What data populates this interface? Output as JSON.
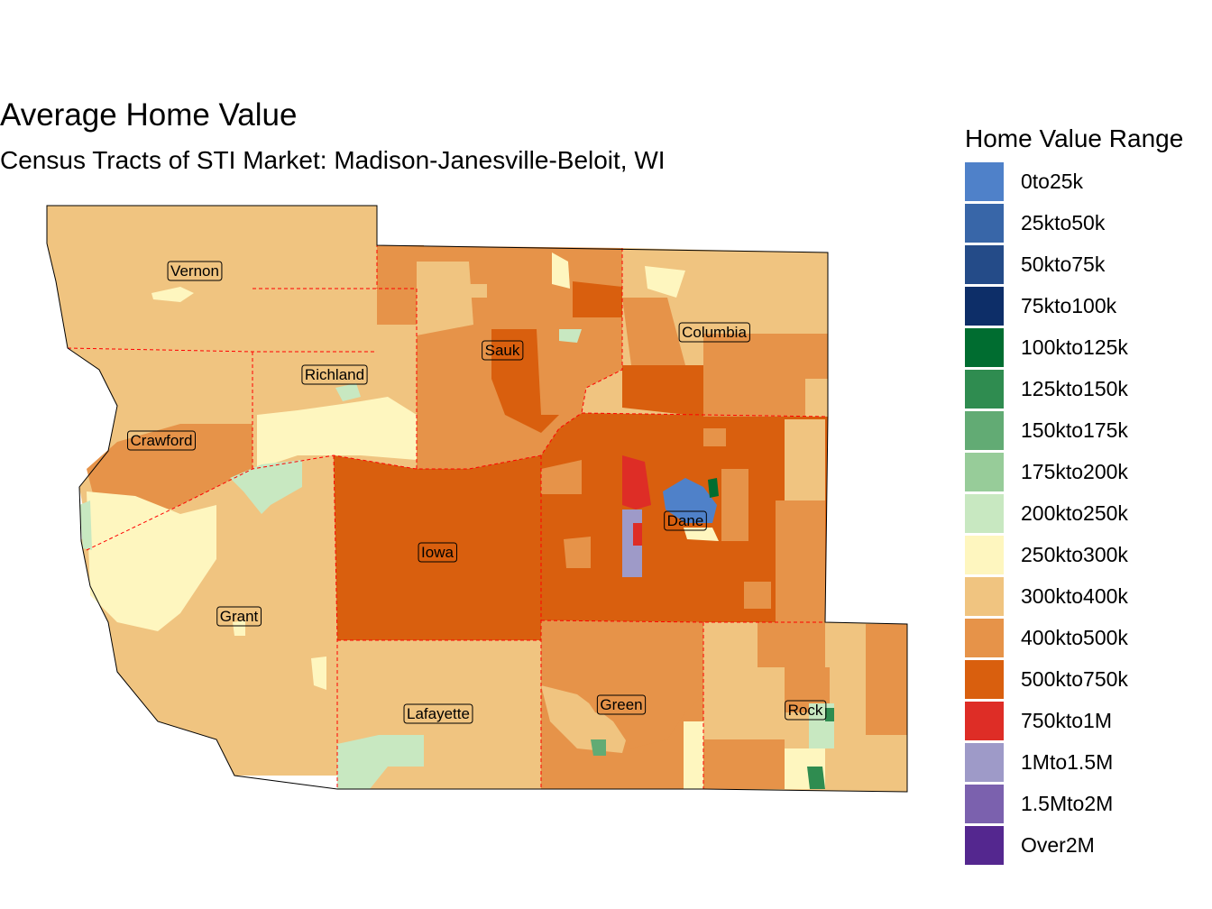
{
  "title": "Average Home Value",
  "subtitle": "Census Tracts of STI Market: Madison-Janesville-Beloit, WI",
  "legend": {
    "title": "Home Value Range",
    "items": [
      {
        "label": "0to25k",
        "color": "#4f81c9"
      },
      {
        "label": "25kto50k",
        "color": "#3866a8"
      },
      {
        "label": "50kto75k",
        "color": "#244b88"
      },
      {
        "label": "75kto100k",
        "color": "#0d2e68"
      },
      {
        "label": "100kto125k",
        "color": "#006d30"
      },
      {
        "label": "125kto150k",
        "color": "#2f8c50"
      },
      {
        "label": "150kto175k",
        "color": "#62ab74"
      },
      {
        "label": "175kto200k",
        "color": "#97cc99"
      },
      {
        "label": "200kto250k",
        "color": "#c8e8c1"
      },
      {
        "label": "250kto300k",
        "color": "#fef6bf"
      },
      {
        "label": "300kto400k",
        "color": "#f0c480"
      },
      {
        "label": "400kto500k",
        "color": "#e69349"
      },
      {
        "label": "500kto750k",
        "color": "#d95f0e"
      },
      {
        "label": "750kto1M",
        "color": "#de2d26"
      },
      {
        "label": "1Mto1.5M",
        "color": "#9e9ac8"
      },
      {
        "label": "1.5Mto2M",
        "color": "#7b61ae"
      },
      {
        "label": "Over2M",
        "color": "#54278f"
      }
    ]
  },
  "counties": [
    {
      "name": "Vernon",
      "fill": "300kto400k"
    },
    {
      "name": "Richland",
      "fill": "300kto400k"
    },
    {
      "name": "Crawford",
      "fill": "300kto400k"
    },
    {
      "name": "Sauk",
      "fill": "400kto500k"
    },
    {
      "name": "Columbia",
      "fill": "400kto500k"
    },
    {
      "name": "Grant",
      "fill": "300kto400k"
    },
    {
      "name": "Iowa",
      "fill": "500kto750k"
    },
    {
      "name": "Dane",
      "fill": "500kto750k"
    },
    {
      "name": "Lafayette",
      "fill": "300kto400k"
    },
    {
      "name": "Green",
      "fill": "400kto500k"
    },
    {
      "name": "Rock",
      "fill": "300kto400k"
    }
  ]
}
